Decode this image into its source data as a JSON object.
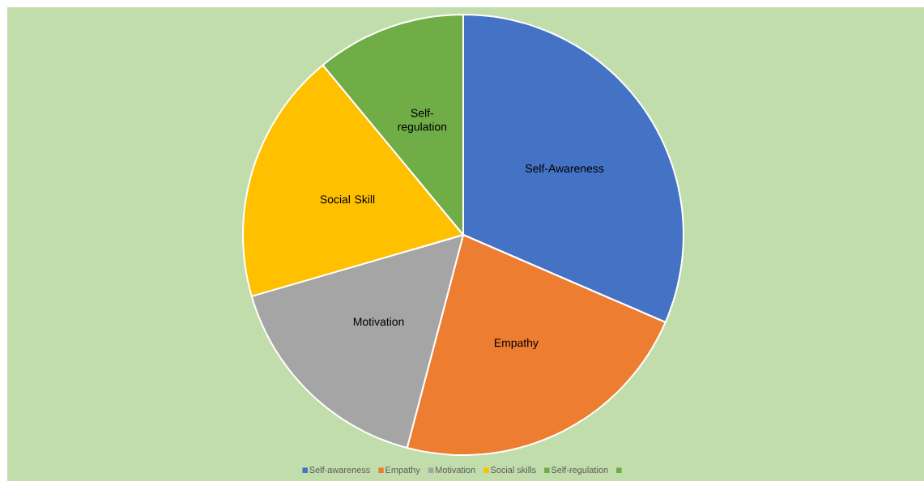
{
  "chart_data": {
    "type": "pie",
    "categories": [
      "Self-awareness",
      "Empathy",
      "Motivation",
      "Social skills",
      "Self-regulation",
      null
    ],
    "values": [
      31.5,
      22.6,
      16.4,
      18.5,
      11.0,
      0
    ],
    "colors": [
      "#4472c4",
      "#ed7d31",
      "#a5a5a5",
      "#ffc000",
      "#70ad47",
      "#70ad47"
    ],
    "legend": "bottom",
    "annotations": [
      {
        "text": "Self-Awareness",
        "x": "Self-awareness"
      },
      {
        "text": "Empathy",
        "x": "Empathy"
      },
      {
        "text": "Motivation",
        "x": "Motivation"
      },
      {
        "text": "Social Skill",
        "x": "Social skills"
      },
      {
        "text": "Self-regulation",
        "x": "Self-regulation"
      }
    ]
  }
}
